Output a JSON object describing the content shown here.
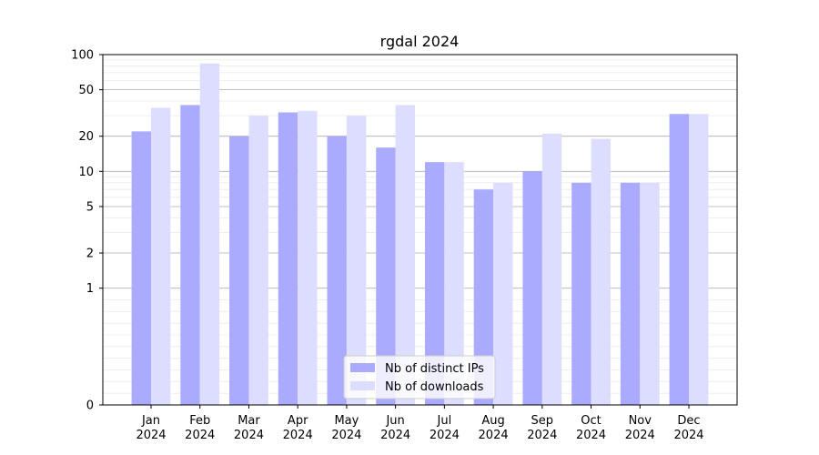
{
  "chart_data": {
    "type": "bar",
    "title": "rgdal 2024",
    "xlabel": "",
    "ylabel": "",
    "y_scale": "symlog",
    "ylim": [
      0,
      100
    ],
    "y_ticks": [
      {
        "value": 0,
        "label": "0"
      },
      {
        "value": 1,
        "label": "1"
      },
      {
        "value": 2,
        "label": "2"
      },
      {
        "value": 5,
        "label": "5"
      },
      {
        "value": 10,
        "label": "10"
      },
      {
        "value": 20,
        "label": "20"
      },
      {
        "value": 50,
        "label": "50"
      },
      {
        "value": 100,
        "label": "100"
      }
    ],
    "categories": [
      {
        "month": "Jan",
        "year": "2024"
      },
      {
        "month": "Feb",
        "year": "2024"
      },
      {
        "month": "Mar",
        "year": "2024"
      },
      {
        "month": "Apr",
        "year": "2024"
      },
      {
        "month": "May",
        "year": "2024"
      },
      {
        "month": "Jun",
        "year": "2024"
      },
      {
        "month": "Jul",
        "year": "2024"
      },
      {
        "month": "Aug",
        "year": "2024"
      },
      {
        "month": "Sep",
        "year": "2024"
      },
      {
        "month": "Oct",
        "year": "2024"
      },
      {
        "month": "Nov",
        "year": "2024"
      },
      {
        "month": "Dec",
        "year": "2024"
      }
    ],
    "series": [
      {
        "name": "Nb of distinct IPs",
        "color": "#aaaaff",
        "values": [
          22,
          37,
          20,
          32,
          20,
          16,
          12,
          7,
          10,
          8,
          8,
          31
        ]
      },
      {
        "name": "Nb of downloads",
        "color": "#ddddff",
        "values": [
          35,
          84,
          30,
          33,
          30,
          37,
          12,
          8,
          21,
          19,
          8,
          31
        ]
      }
    ],
    "grid": true,
    "legend_position": "bottom-center"
  }
}
